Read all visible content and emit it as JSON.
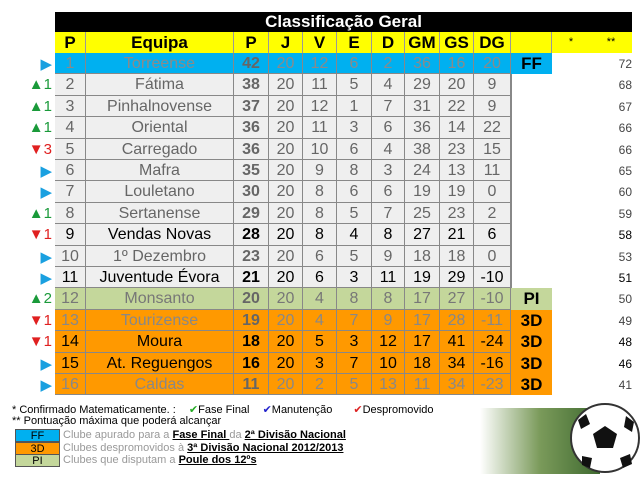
{
  "title": "Classificação Geral",
  "headers": [
    "P",
    "Equipa",
    "P",
    "J",
    "V",
    "E",
    "D",
    "GM",
    "GS",
    "DG",
    "",
    "*",
    "**"
  ],
  "colors": {
    "FF": "#00b0f0",
    "3D": "#ff9900",
    "PI": "#c4d79b",
    "default": "#efefef",
    "up": "#1a9a3a",
    "down": "#e02020",
    "same": "#1aa0e0"
  },
  "rows": [
    {
      "ind": "same",
      "chg": "",
      "pos": "1",
      "team": "Torreense",
      "pts": "42",
      "j": "20",
      "v": "12",
      "e": "6",
      "d": "2",
      "gm": "36",
      "gs": "16",
      "dg": "20",
      "status": "FF",
      "max": "72",
      "zone": "FF",
      "text": "#8a8a8a"
    },
    {
      "ind": "up",
      "chg": "1",
      "pos": "2",
      "team": "Fátima",
      "pts": "38",
      "j": "20",
      "v": "11",
      "e": "5",
      "d": "4",
      "gm": "29",
      "gs": "20",
      "dg": "9",
      "status": "",
      "max": "68",
      "zone": "default",
      "text": "#666"
    },
    {
      "ind": "up",
      "chg": "1",
      "pos": "3",
      "team": "Pinhalnovense",
      "pts": "37",
      "j": "20",
      "v": "12",
      "e": "1",
      "d": "7",
      "gm": "31",
      "gs": "22",
      "dg": "9",
      "status": "",
      "max": "67",
      "zone": "default",
      "text": "#666"
    },
    {
      "ind": "up",
      "chg": "1",
      "pos": "4",
      "team": "Oriental",
      "pts": "36",
      "j": "20",
      "v": "11",
      "e": "3",
      "d": "6",
      "gm": "36",
      "gs": "14",
      "dg": "22",
      "status": "",
      "max": "66",
      "zone": "default",
      "text": "#666"
    },
    {
      "ind": "down",
      "chg": "3",
      "pos": "5",
      "team": "Carregado",
      "pts": "36",
      "j": "20",
      "v": "10",
      "e": "6",
      "d": "4",
      "gm": "38",
      "gs": "23",
      "dg": "15",
      "status": "",
      "max": "66",
      "zone": "default",
      "text": "#666"
    },
    {
      "ind": "same",
      "chg": "",
      "pos": "6",
      "team": "Mafra",
      "pts": "35",
      "j": "20",
      "v": "9",
      "e": "8",
      "d": "3",
      "gm": "24",
      "gs": "13",
      "dg": "11",
      "status": "",
      "max": "65",
      "zone": "default",
      "text": "#666"
    },
    {
      "ind": "same",
      "chg": "",
      "pos": "7",
      "team": "Louletano",
      "pts": "30",
      "j": "20",
      "v": "8",
      "e": "6",
      "d": "6",
      "gm": "19",
      "gs": "19",
      "dg": "0",
      "status": "",
      "max": "60",
      "zone": "default",
      "text": "#666"
    },
    {
      "ind": "up",
      "chg": "1",
      "pos": "8",
      "team": "Sertanense",
      "pts": "29",
      "j": "20",
      "v": "8",
      "e": "5",
      "d": "7",
      "gm": "25",
      "gs": "23",
      "dg": "2",
      "status": "",
      "max": "59",
      "zone": "default",
      "text": "#666"
    },
    {
      "ind": "down",
      "chg": "1",
      "pos": "9",
      "team": "Vendas Novas",
      "pts": "28",
      "j": "20",
      "v": "8",
      "e": "4",
      "d": "8",
      "gm": "27",
      "gs": "21",
      "dg": "6",
      "status": "",
      "max": "58",
      "zone": "default",
      "text": "#000"
    },
    {
      "ind": "same",
      "chg": "",
      "pos": "10",
      "team": "1º Dezembro",
      "pts": "23",
      "j": "20",
      "v": "6",
      "e": "5",
      "d": "9",
      "gm": "18",
      "gs": "18",
      "dg": "0",
      "status": "",
      "max": "53",
      "zone": "default",
      "text": "#666"
    },
    {
      "ind": "same",
      "chg": "",
      "pos": "11",
      "team": "Juventude Évora",
      "pts": "21",
      "j": "20",
      "v": "6",
      "e": "3",
      "d": "11",
      "gm": "19",
      "gs": "29",
      "dg": "-10",
      "status": "",
      "max": "51",
      "zone": "default",
      "text": "#000"
    },
    {
      "ind": "up",
      "chg": "2",
      "pos": "12",
      "team": "Monsanto",
      "pts": "20",
      "j": "20",
      "v": "4",
      "e": "8",
      "d": "8",
      "gm": "17",
      "gs": "27",
      "dg": "-10",
      "status": "PI",
      "max": "50",
      "zone": "PI",
      "text": "#777"
    },
    {
      "ind": "down",
      "chg": "1",
      "pos": "13",
      "team": "Tourizense",
      "pts": "19",
      "j": "20",
      "v": "4",
      "e": "7",
      "d": "9",
      "gm": "17",
      "gs": "28",
      "dg": "-11",
      "status": "3D",
      "max": "49",
      "zone": "3D",
      "text": "#888"
    },
    {
      "ind": "down",
      "chg": "1",
      "pos": "14",
      "team": "Moura",
      "pts": "18",
      "j": "20",
      "v": "5",
      "e": "3",
      "d": "12",
      "gm": "17",
      "gs": "41",
      "dg": "-24",
      "status": "3D",
      "max": "48",
      "zone": "3D",
      "text": "#000"
    },
    {
      "ind": "same",
      "chg": "",
      "pos": "15",
      "team": "At. Reguengos",
      "pts": "16",
      "j": "20",
      "v": "3",
      "e": "7",
      "d": "10",
      "gm": "18",
      "gs": "34",
      "dg": "-16",
      "status": "3D",
      "max": "46",
      "zone": "3D",
      "text": "#000"
    },
    {
      "ind": "same",
      "chg": "",
      "pos": "16",
      "team": "Caldas",
      "pts": "11",
      "j": "20",
      "v": "2",
      "e": "5",
      "d": "13",
      "gm": "11",
      "gs": "34",
      "dg": "-23",
      "status": "3D",
      "max": "41",
      "zone": "3D",
      "text": "#888"
    }
  ],
  "legend": {
    "line1": "* Confirmado Matematicamente. :",
    "ff_check": "Fase Final",
    "man_check": "Manutenção",
    "desp_check": "Despromovido",
    "line2": "** Pontuação máxima que poderá alcançar",
    "items": [
      {
        "code": "FF",
        "pre": "Clube apurado para a ",
        "link1": "Fase Final ",
        "mid": "da ",
        "link2": "2ª Divisão Nacional"
      },
      {
        "code": "3D",
        "pre": "Clubes despromovidos à ",
        "link1": "3ª Divisão Nacional 2012/2013",
        "mid": "",
        "link2": ""
      },
      {
        "code": "PI",
        "pre": "Clubes que disputam a ",
        "link1": "Poule dos 12ºs",
        "mid": "",
        "link2": ""
      }
    ]
  }
}
